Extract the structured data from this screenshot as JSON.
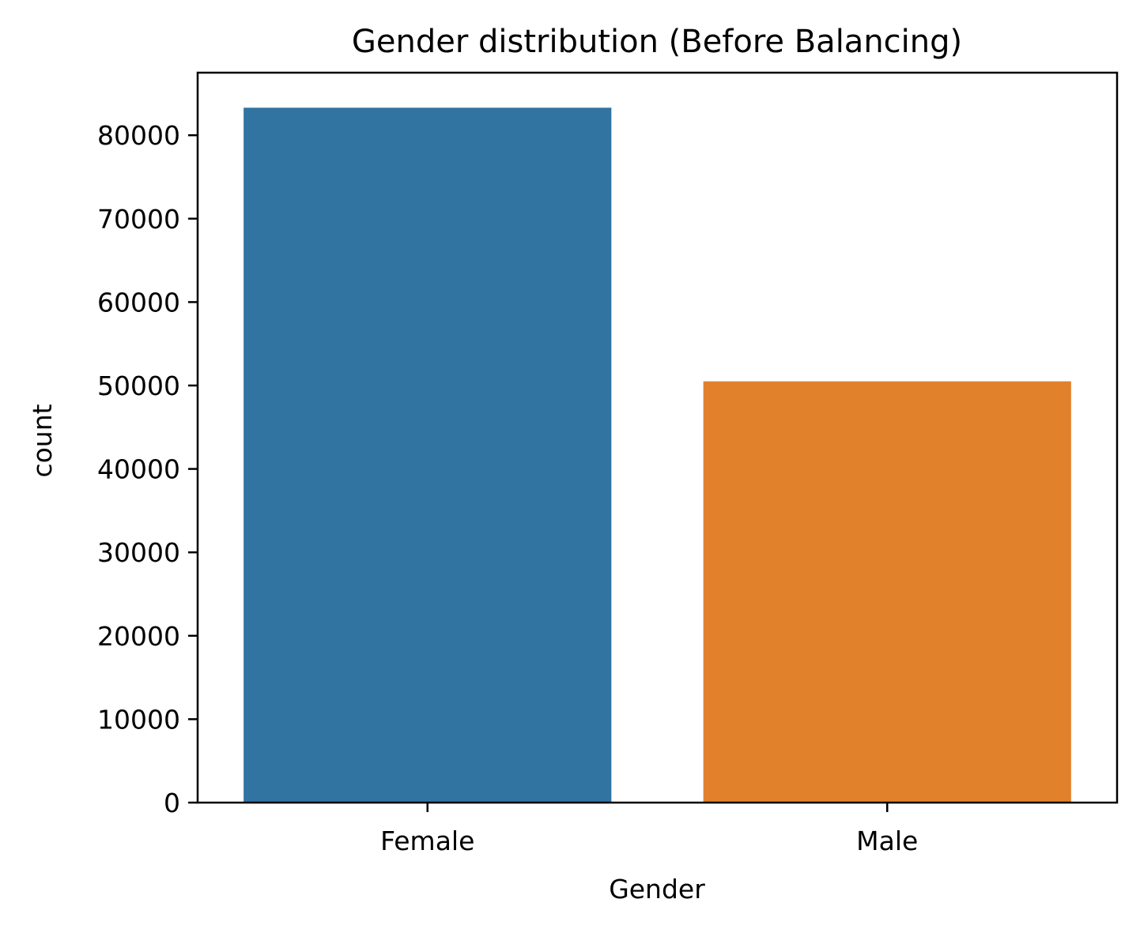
{
  "chart_data": {
    "type": "bar",
    "title": "Gender distribution (Before Balancing)",
    "xlabel": "Gender",
    "ylabel": "count",
    "categories": [
      "Female",
      "Male"
    ],
    "values": [
      83300,
      50500
    ],
    "colors": [
      "#3274a1",
      "#e1812c"
    ],
    "ylim": [
      0,
      87500
    ],
    "yticks": [
      0,
      10000,
      20000,
      30000,
      40000,
      50000,
      60000,
      70000,
      80000
    ],
    "grid": false,
    "legend": "none"
  }
}
